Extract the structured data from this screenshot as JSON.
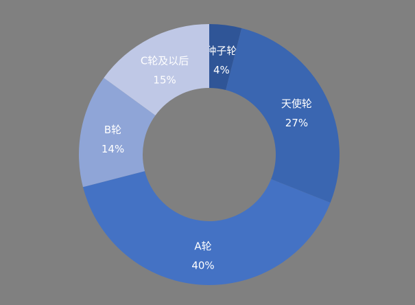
{
  "chart_data": {
    "type": "pie",
    "variant": "donut",
    "categories": [
      "种子轮",
      "天使轮",
      "A轮",
      "B轮",
      "C轮及以后"
    ],
    "values": [
      4,
      27,
      40,
      14,
      15
    ],
    "labels": [
      "4%",
      "27%",
      "40%",
      "14%",
      "15%"
    ],
    "colors": [
      "#2f5597",
      "#3a66b1",
      "#4472c4",
      "#8fa5d7",
      "#bfc8e6"
    ],
    "background": "#808080",
    "start_angle": "top",
    "direction": "clockwise",
    "legend": "none"
  }
}
